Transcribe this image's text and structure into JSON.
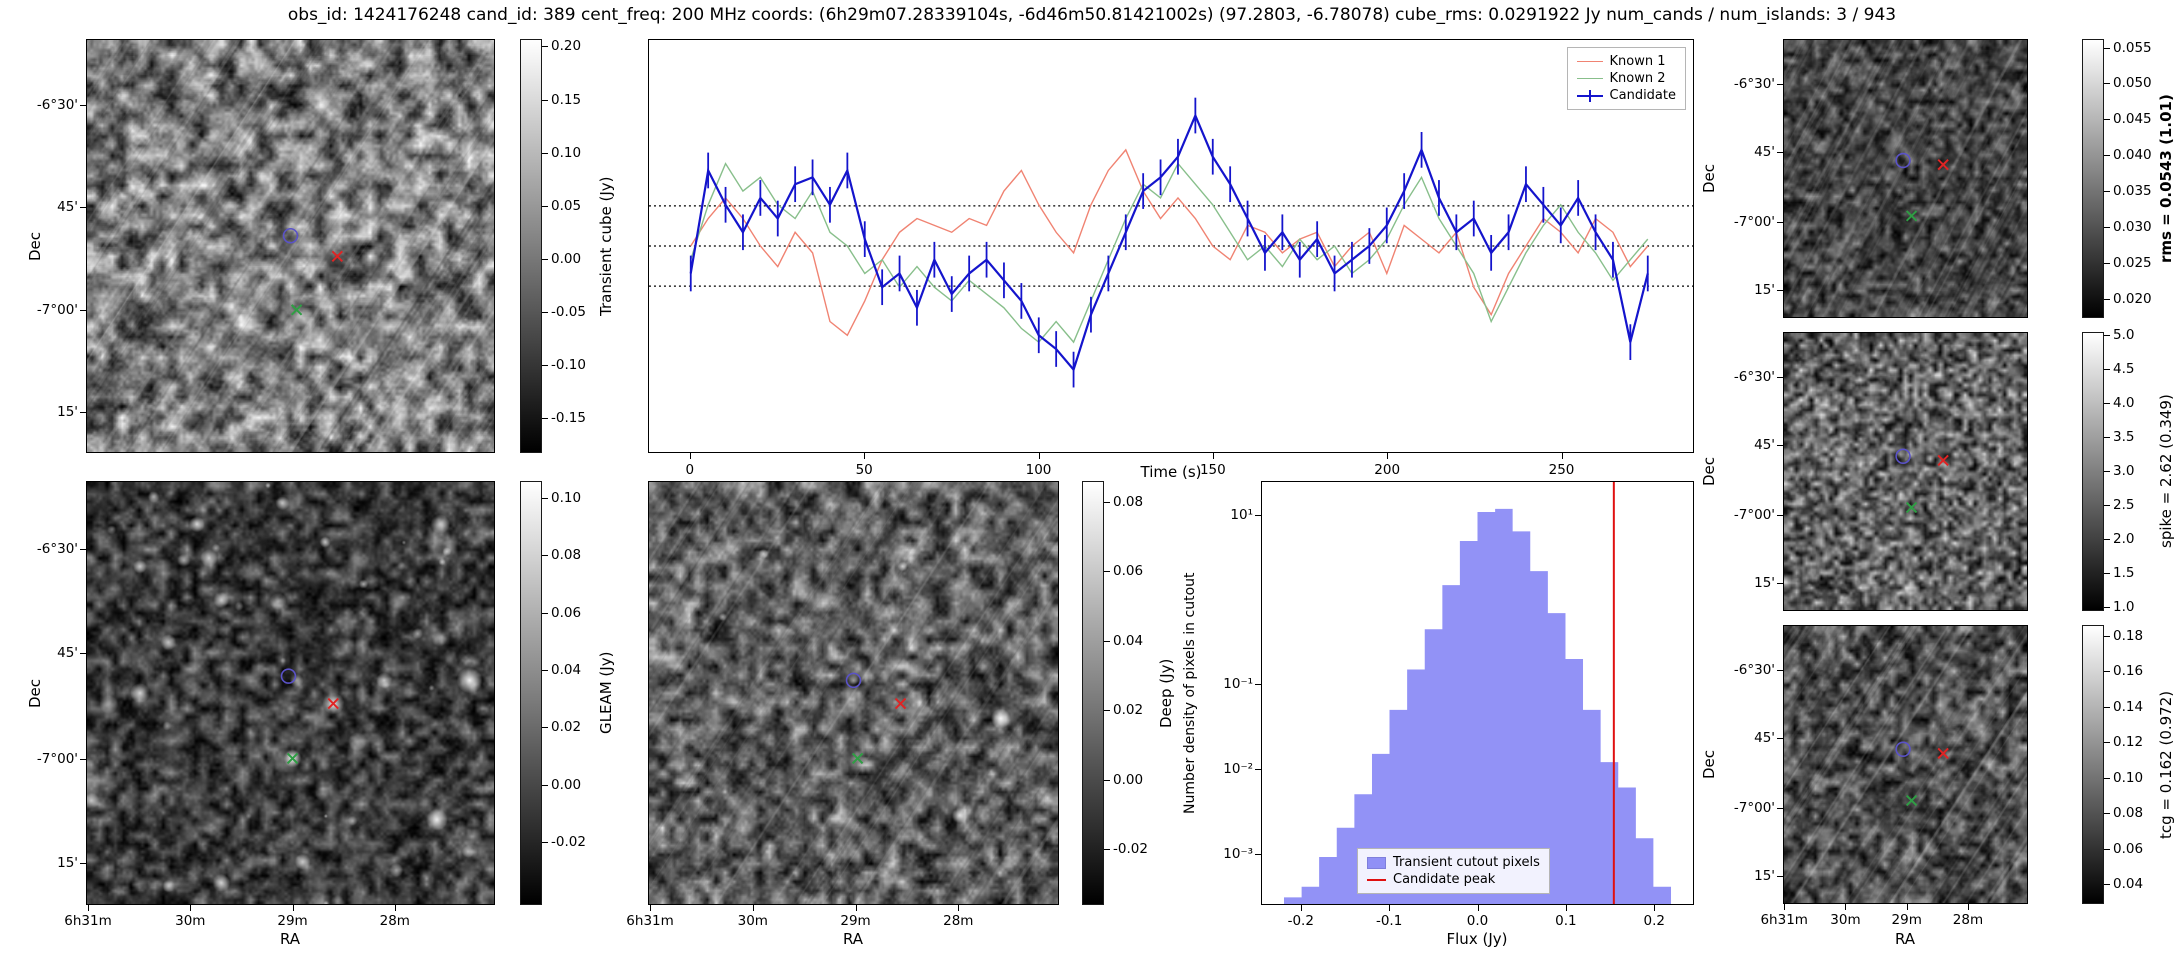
{
  "title": "obs_id: 1424176248 cand_id: 389 cent_freq: 200 MHz coords: (6h29m07.28339104s, -6d46m50.81421002s) (97.2803, -6.78078) cube_rms: 0.0291922 Jy num_cands / num_islands: 3 / 943",
  "panels": {
    "transient": {
      "ylabel": "Dec",
      "dec_ticks": [
        "-6°30'",
        "45'",
        "-7°00'",
        "15'"
      ],
      "colorbar": {
        "label": "Transient cube (Jy)",
        "ticks": [
          "0.20",
          "0.15",
          "0.10",
          "0.05",
          "0.00",
          "-0.05",
          "-0.10",
          "-0.15"
        ],
        "vmin": -0.183,
        "vmax": 0.207
      },
      "markers": [
        {
          "type": "circle",
          "color": "#5a52c8",
          "x": 0.5,
          "y": 0.475
        },
        {
          "type": "x",
          "color": "#e02424",
          "x": 0.615,
          "y": 0.525
        },
        {
          "type": "x",
          "color": "#2f9e44",
          "x": 0.515,
          "y": 0.655
        }
      ]
    },
    "gleam": {
      "ylabel": "Dec",
      "xlabel": "RA",
      "dec_ticks": [
        "-6°30'",
        "45'",
        "-7°00'",
        "15'"
      ],
      "ra_ticks": [
        "6h31m",
        "30m",
        "29m",
        "28m"
      ],
      "colorbar": {
        "label": "GLEAM (Jy)",
        "ticks": [
          "0.10",
          "0.08",
          "0.06",
          "0.04",
          "0.02",
          "0.00",
          "-0.02"
        ],
        "vmin": -0.042,
        "vmax": 0.106
      },
      "markers": [
        {
          "type": "circle",
          "color": "#5a52c8",
          "x": 0.495,
          "y": 0.46
        },
        {
          "type": "x",
          "color": "#e02424",
          "x": 0.605,
          "y": 0.525
        },
        {
          "type": "x",
          "color": "#2f9e44",
          "x": 0.505,
          "y": 0.655
        }
      ]
    },
    "deep": {
      "xlabel": "RA",
      "ra_ticks": [
        "6h31m",
        "30m",
        "29m",
        "28m"
      ],
      "colorbar": {
        "label": "Deep (Jy)",
        "ticks": [
          "0.08",
          "0.06",
          "0.04",
          "0.02",
          "0.00",
          "-0.02"
        ],
        "vmin": -0.036,
        "vmax": 0.086
      },
      "markers": [
        {
          "type": "circle",
          "color": "#5a52c8",
          "x": 0.5,
          "y": 0.47
        },
        {
          "type": "x",
          "color": "#e02424",
          "x": 0.615,
          "y": 0.525
        },
        {
          "type": "x",
          "color": "#2f9e44",
          "x": 0.51,
          "y": 0.655
        }
      ]
    },
    "rms": {
      "ylabel": "Dec",
      "dec_ticks": [
        "-6°30'",
        "45'",
        "-7°00'",
        "15'"
      ],
      "colorbar": {
        "label": "rms = 0.0543 (1.01)",
        "ticks": [
          "0.055",
          "0.050",
          "0.045",
          "0.040",
          "0.035",
          "0.030",
          "0.025",
          "0.020"
        ],
        "vmin": 0.0173,
        "vmax": 0.0562
      },
      "markers": [
        {
          "type": "circle",
          "color": "#5a52c8",
          "x": 0.49,
          "y": 0.435
        },
        {
          "type": "x",
          "color": "#e02424",
          "x": 0.655,
          "y": 0.45
        },
        {
          "type": "x",
          "color": "#2f9e44",
          "x": 0.525,
          "y": 0.635
        }
      ]
    },
    "spike": {
      "ylabel": "Dec",
      "dec_ticks": [
        "-6°30'",
        "45'",
        "-7°00'",
        "15'"
      ],
      "colorbar": {
        "label": "spike = 2.62 (0.349)",
        "ticks": [
          "5.0",
          "4.5",
          "4.0",
          "3.5",
          "3.0",
          "2.5",
          "2.0",
          "1.5",
          "1.0"
        ],
        "vmin": 0.94,
        "vmax": 5.04
      },
      "markers": [
        {
          "type": "circle",
          "color": "#5a52c8",
          "x": 0.49,
          "y": 0.445
        },
        {
          "type": "x",
          "color": "#e02424",
          "x": 0.655,
          "y": 0.46
        },
        {
          "type": "x",
          "color": "#2f9e44",
          "x": 0.525,
          "y": 0.63
        }
      ]
    },
    "tcg": {
      "ylabel": "Dec",
      "xlabel": "RA",
      "dec_ticks": [
        "-6°30'",
        "45'",
        "-7°00'",
        "15'"
      ],
      "ra_ticks": [
        "6h31m",
        "30m",
        "29m",
        "28m"
      ],
      "colorbar": {
        "label": "tcg = 0.162 (0.972)",
        "ticks": [
          "0.18",
          "0.16",
          "0.14",
          "0.12",
          "0.10",
          "0.08",
          "0.06",
          "0.04"
        ],
        "vmin": 0.029,
        "vmax": 0.186
      },
      "markers": [
        {
          "type": "circle",
          "color": "#5a52c8",
          "x": 0.49,
          "y": 0.445
        },
        {
          "type": "x",
          "color": "#e02424",
          "x": 0.655,
          "y": 0.46
        },
        {
          "type": "x",
          "color": "#2f9e44",
          "x": 0.525,
          "y": 0.63
        }
      ]
    }
  },
  "chart_data": [
    {
      "type": "line",
      "title": "",
      "xlabel": "Time (s)",
      "ylabel": "Transient cube (Jy)",
      "xlim": [
        -12,
        288
      ],
      "ylim": [
        -0.15,
        0.15
      ],
      "grid": false,
      "legend_position": "top-right",
      "hlines": [
        0.0291922,
        0.0,
        -0.0291922
      ],
      "xticks": [
        "0",
        "50",
        "100",
        "150",
        "200",
        "250"
      ],
      "x": [
        0,
        5,
        10,
        15,
        20,
        25,
        30,
        35,
        40,
        45,
        50,
        55,
        60,
        65,
        70,
        75,
        80,
        85,
        90,
        95,
        100,
        105,
        110,
        115,
        120,
        125,
        130,
        135,
        140,
        145,
        150,
        155,
        160,
        165,
        170,
        175,
        180,
        185,
        190,
        195,
        200,
        205,
        210,
        215,
        220,
        225,
        230,
        235,
        240,
        245,
        250,
        255,
        260,
        265,
        270,
        275
      ],
      "series": [
        {
          "name": "Known 1",
          "color": "#f08372",
          "values": [
            0.0,
            0.02,
            0.035,
            0.02,
            0.0,
            -0.015,
            0.01,
            -0.005,
            -0.055,
            -0.065,
            -0.04,
            -0.01,
            0.01,
            0.02,
            0.015,
            0.01,
            0.02,
            0.015,
            0.04,
            0.055,
            0.03,
            0.01,
            -0.005,
            0.03,
            0.055,
            0.07,
            0.04,
            0.02,
            0.035,
            0.02,
            0.0,
            -0.01,
            0.015,
            0.01,
            -0.005,
            0.005,
            0.01,
            -0.015,
            0.0,
            0.01,
            -0.02,
            0.015,
            0.005,
            -0.005,
            0.01,
            -0.03,
            -0.05,
            -0.02,
            0.0,
            0.02,
            0.01,
            -0.005,
            0.02,
            0.01,
            -0.015,
            0.0
          ]
        },
        {
          "name": "Known 2",
          "color": "#88bf8b",
          "values": [
            -0.01,
            0.03,
            0.06,
            0.04,
            0.05,
            0.03,
            0.02,
            0.04,
            0.01,
            0.0,
            -0.02,
            -0.01,
            -0.03,
            -0.015,
            -0.03,
            -0.04,
            -0.025,
            -0.035,
            -0.045,
            -0.06,
            -0.07,
            -0.055,
            -0.07,
            -0.04,
            -0.01,
            0.02,
            0.045,
            0.035,
            0.06,
            0.045,
            0.03,
            0.01,
            -0.01,
            0.0,
            -0.015,
            0.005,
            -0.01,
            0.0,
            -0.02,
            -0.01,
            0.005,
            0.03,
            0.05,
            0.02,
            0.0,
            -0.02,
            -0.055,
            -0.03,
            -0.005,
            0.015,
            0.03,
            0.01,
            -0.005,
            -0.025,
            -0.01,
            0.005
          ]
        },
        {
          "name": "Candidate",
          "color": "#1414cc",
          "yerr": 0.013,
          "values": [
            -0.02,
            0.055,
            0.03,
            0.01,
            0.035,
            0.02,
            0.045,
            0.05,
            0.03,
            0.055,
            0.005,
            -0.03,
            -0.02,
            -0.045,
            -0.01,
            -0.035,
            -0.02,
            -0.01,
            -0.025,
            -0.04,
            -0.065,
            -0.075,
            -0.09,
            -0.05,
            -0.02,
            0.01,
            0.04,
            0.05,
            0.065,
            0.095,
            0.065,
            0.045,
            0.02,
            -0.005,
            0.01,
            -0.01,
            0.005,
            -0.02,
            -0.01,
            0.0,
            0.015,
            0.04,
            0.07,
            0.035,
            0.01,
            0.02,
            -0.005,
            0.01,
            0.045,
            0.03,
            0.015,
            0.035,
            0.01,
            -0.01,
            -0.07,
            -0.02
          ]
        }
      ]
    },
    {
      "type": "bar",
      "title": "",
      "xlabel": "Flux (Jy)",
      "ylabel": "Number density of pixels in cutout",
      "yscale": "log",
      "xlim": [
        -0.245,
        0.245
      ],
      "ylim": [
        0.00025,
        25
      ],
      "bar_color": "#7f7ff5",
      "hist_label": "Transient cutout pixels",
      "vline": {
        "x": 0.155,
        "color": "#e01010",
        "label": "Candidate peak"
      },
      "bin_edges": [
        -0.22,
        -0.2,
        -0.18,
        -0.16,
        -0.14,
        -0.12,
        -0.1,
        -0.08,
        -0.06,
        -0.04,
        -0.02,
        0.0,
        0.02,
        0.04,
        0.06,
        0.08,
        0.1,
        0.12,
        0.14,
        0.16,
        0.18,
        0.2,
        0.22
      ],
      "densities": [
        0.0003,
        0.0004,
        0.0009,
        0.002,
        0.005,
        0.015,
        0.05,
        0.15,
        0.45,
        1.5,
        5.0,
        11.0,
        12.0,
        6.5,
        2.2,
        0.7,
        0.2,
        0.05,
        0.012,
        0.006,
        0.0015,
        0.0004
      ],
      "xticks": [
        "-0.2",
        "-0.1",
        "0.0",
        "0.1",
        "0.2"
      ],
      "ytick_values": [
        10,
        0.1,
        0.01,
        0.001
      ],
      "ytick_labels": [
        "10¹",
        "10⁻¹",
        "10⁻²",
        "10⁻³"
      ]
    }
  ]
}
